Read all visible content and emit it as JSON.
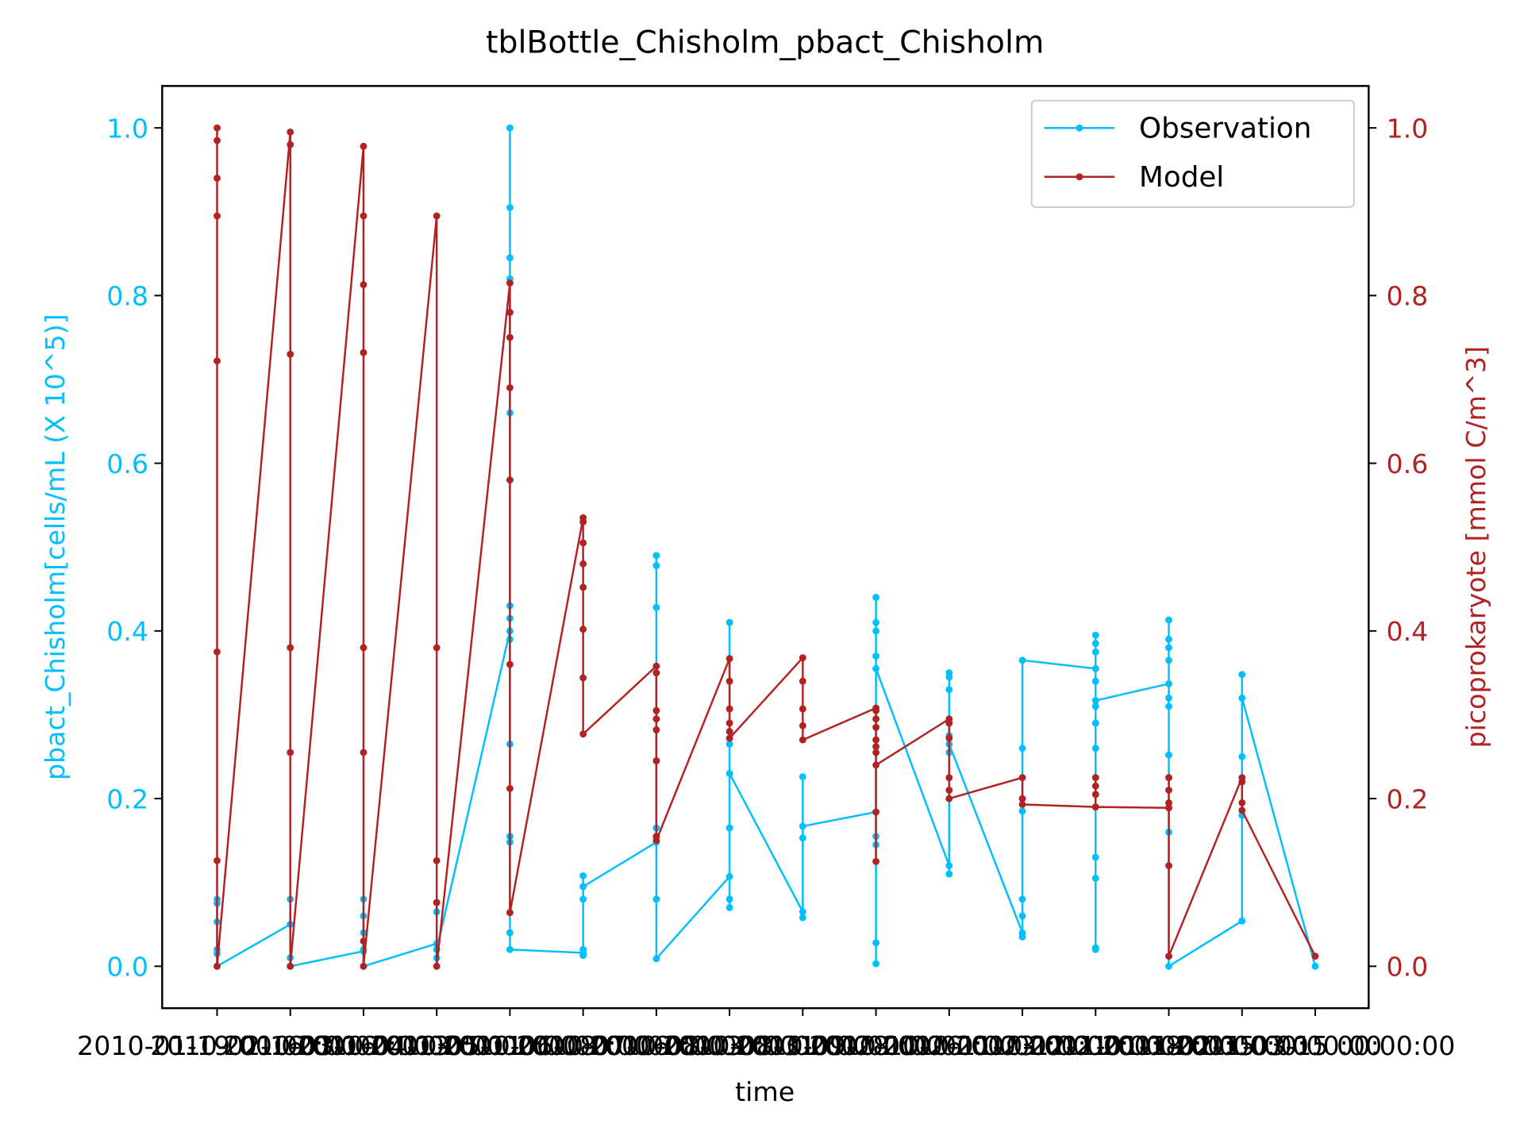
{
  "chart_data": {
    "type": "line",
    "title": "tblBottle_Chisholm_pbact_Chisholm",
    "xlabel": "time",
    "ylabel": "pbact_Chisholm[cells/mL (X 10^5)]",
    "y2label": "picoprokaryote [mmol C/m^3]",
    "xlim": [
      -0.75,
      15.73
    ],
    "ylim": [
      -0.05,
      1.05
    ],
    "y2lim": [
      -0.05,
      1.05
    ],
    "xticks": [
      {
        "value": 0,
        "label": "2010-01-19 00:00:00"
      },
      {
        "value": 1,
        "label": "2010-02-16 00:00:00"
      },
      {
        "value": 2,
        "label": "2010-03-16 00:00:00"
      },
      {
        "value": 3,
        "label": "2010-04-13 00:00:00"
      },
      {
        "value": 4,
        "label": "2010-05-11 00:00:00"
      },
      {
        "value": 5,
        "label": "2010-06-08 00:00:00"
      },
      {
        "value": 6,
        "label": "2010-07-06 00:00:00"
      },
      {
        "value": 7,
        "label": "2010-08-03 00:00:00"
      },
      {
        "value": 8,
        "label": "2010-08-31 00:00:00"
      },
      {
        "value": 9,
        "label": "2010-09-28 00:00:00"
      },
      {
        "value": 10,
        "label": "2010-10-26 00:00:00"
      },
      {
        "value": 11,
        "label": "2010-11-23 00:00:00"
      },
      {
        "value": 12,
        "label": "2010-12-21 00:00:00"
      },
      {
        "value": 13,
        "label": "2011-01-18 00:00:00"
      },
      {
        "value": 14,
        "label": "2011-02-15 00:00:00"
      },
      {
        "value": 15,
        "label": "2011-03-15 00:00:00"
      }
    ],
    "yticks": [
      {
        "value": 0,
        "label": "0.0"
      },
      0.2,
      0.4,
      0.6,
      0.8,
      {
        "value": 1,
        "label": "1.0"
      }
    ],
    "y2ticks": [
      {
        "value": 0,
        "label": "0.0"
      },
      0.2,
      0.4,
      0.6,
      0.8,
      {
        "value": 1,
        "label": "1.0"
      }
    ],
    "legend": "upper right",
    "grid": false,
    "series": [
      {
        "name": "Observation",
        "color": "#00bfff",
        "x": [
          0,
          0,
          0,
          0,
          0,
          0,
          1,
          1,
          1,
          1,
          2,
          2,
          2,
          2,
          2,
          2,
          3,
          3,
          3,
          3,
          3,
          4,
          4,
          4,
          4,
          4,
          4,
          4,
          4,
          4,
          4,
          4,
          4,
          4,
          4,
          5,
          5,
          5,
          5,
          5,
          5,
          6,
          6,
          6,
          6,
          6,
          6,
          6,
          6,
          7,
          7,
          7,
          7,
          7,
          7,
          7,
          7,
          8,
          8,
          8,
          8,
          8,
          9,
          9,
          9,
          9,
          9,
          9,
          9,
          9,
          9,
          9,
          10,
          10,
          10,
          10,
          10,
          10,
          10,
          10,
          10,
          11,
          11,
          11,
          11,
          11,
          11,
          11,
          12,
          12,
          12,
          12,
          12,
          12,
          12,
          12,
          12,
          12,
          12,
          12,
          12,
          13,
          13,
          13,
          13,
          13,
          13,
          13,
          13,
          13,
          13,
          14,
          14,
          14,
          14,
          14,
          15
        ],
        "values": [
          0.08,
          0.075,
          0.053,
          0.02,
          0.015,
          0.0,
          0.05,
          0.08,
          0.01,
          0.0,
          0.018,
          0.08,
          0.06,
          0.04,
          0.02,
          0.0,
          0.027,
          0.065,
          0.0,
          0.01,
          0.02,
          0.4,
          1.0,
          0.905,
          0.845,
          0.82,
          0.66,
          0.43,
          0.415,
          0.39,
          0.265,
          0.155,
          0.148,
          0.04,
          0.02,
          0.016,
          0.013,
          0.02,
          0.108,
          0.08,
          0.095,
          0.148,
          0.49,
          0.478,
          0.428,
          0.35,
          0.165,
          0.08,
          0.009,
          0.107,
          0.41,
          0.28,
          0.265,
          0.165,
          0.08,
          0.07,
          0.23,
          0.065,
          0.058,
          0.226,
          0.153,
          0.167,
          0.184,
          0.44,
          0.41,
          0.4,
          0.37,
          0.155,
          0.145,
          0.028,
          0.003,
          0.355,
          0.12,
          0.11,
          0.35,
          0.345,
          0.33,
          0.29,
          0.275,
          0.255,
          0.265,
          0.04,
          0.06,
          0.035,
          0.08,
          0.185,
          0.26,
          0.365,
          0.355,
          0.395,
          0.385,
          0.375,
          0.34,
          0.31,
          0.29,
          0.26,
          0.13,
          0.105,
          0.022,
          0.02,
          0.317,
          0.337,
          0.413,
          0.39,
          0.38,
          0.365,
          0.32,
          0.31,
          0.252,
          0.16,
          0.0,
          0.054,
          0.348,
          0.25,
          0.18,
          0.32,
          0.0
        ]
      },
      {
        "name": "Model",
        "color": "#b22222",
        "axis": "y2",
        "x": [
          0,
          0,
          0,
          0,
          0,
          0,
          0,
          0,
          1,
          1,
          1,
          1,
          1,
          1,
          2,
          2,
          2,
          2,
          2,
          2,
          2,
          2,
          3,
          3,
          3,
          3,
          3,
          4,
          4,
          4,
          4,
          4,
          4,
          4,
          4,
          5,
          5,
          5,
          5,
          5,
          5,
          5,
          5,
          6,
          6,
          6,
          6,
          6,
          6,
          6,
          6,
          7,
          7,
          7,
          7,
          7,
          7,
          8,
          8,
          8,
          8,
          8,
          9,
          9,
          9,
          9,
          9,
          9,
          9,
          9,
          9,
          9,
          10,
          10,
          10,
          10,
          10,
          10,
          11,
          11,
          11,
          12,
          12,
          12,
          12,
          12,
          13,
          13,
          13,
          13,
          13,
          13,
          14,
          14,
          14,
          14,
          15
        ],
        "values": [
          1.0,
          0.985,
          0.94,
          0.895,
          0.722,
          0.375,
          0.126,
          0.0,
          0.995,
          0.98,
          0.73,
          0.38,
          0.255,
          0.0,
          0.978,
          0.895,
          0.813,
          0.732,
          0.38,
          0.255,
          0.03,
          0.0,
          0.895,
          0.38,
          0.126,
          0.076,
          0.0,
          0.815,
          0.78,
          0.75,
          0.69,
          0.58,
          0.36,
          0.212,
          0.064,
          0.535,
          0.53,
          0.505,
          0.48,
          0.452,
          0.402,
          0.344,
          0.277,
          0.358,
          0.35,
          0.305,
          0.295,
          0.282,
          0.245,
          0.155,
          0.15,
          0.367,
          0.34,
          0.307,
          0.29,
          0.28,
          0.272,
          0.368,
          0.34,
          0.307,
          0.287,
          0.27,
          0.308,
          0.305,
          0.295,
          0.285,
          0.27,
          0.262,
          0.255,
          0.184,
          0.125,
          0.24,
          0.295,
          0.29,
          0.272,
          0.225,
          0.21,
          0.2,
          0.225,
          0.2,
          0.193,
          0.19,
          0.225,
          0.215,
          0.205,
          0.19,
          0.189,
          0.225,
          0.21,
          0.195,
          0.12,
          0.012,
          0.225,
          0.22,
          0.195,
          0.186,
          0.012
        ]
      }
    ]
  }
}
